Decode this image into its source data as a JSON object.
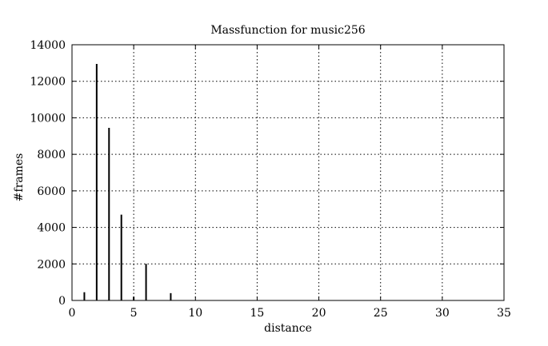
{
  "chart_data": {
    "type": "bar",
    "title": "Massfunction for music256",
    "xlabel": "distance",
    "ylabel": "#frames",
    "xlim": [
      0,
      35
    ],
    "ylim": [
      0,
      14000
    ],
    "xticks": [
      0,
      5,
      10,
      15,
      20,
      25,
      30,
      35
    ],
    "yticks": [
      0,
      2000,
      4000,
      6000,
      8000,
      10000,
      12000,
      14000
    ],
    "grid": true,
    "x": [
      1,
      2,
      3,
      4,
      5,
      6,
      8
    ],
    "values": [
      450,
      12950,
      9450,
      4700,
      200,
      2000,
      400
    ]
  },
  "colors": {
    "bars": "#000000",
    "grid": "#000000",
    "background": "#ffffff"
  }
}
